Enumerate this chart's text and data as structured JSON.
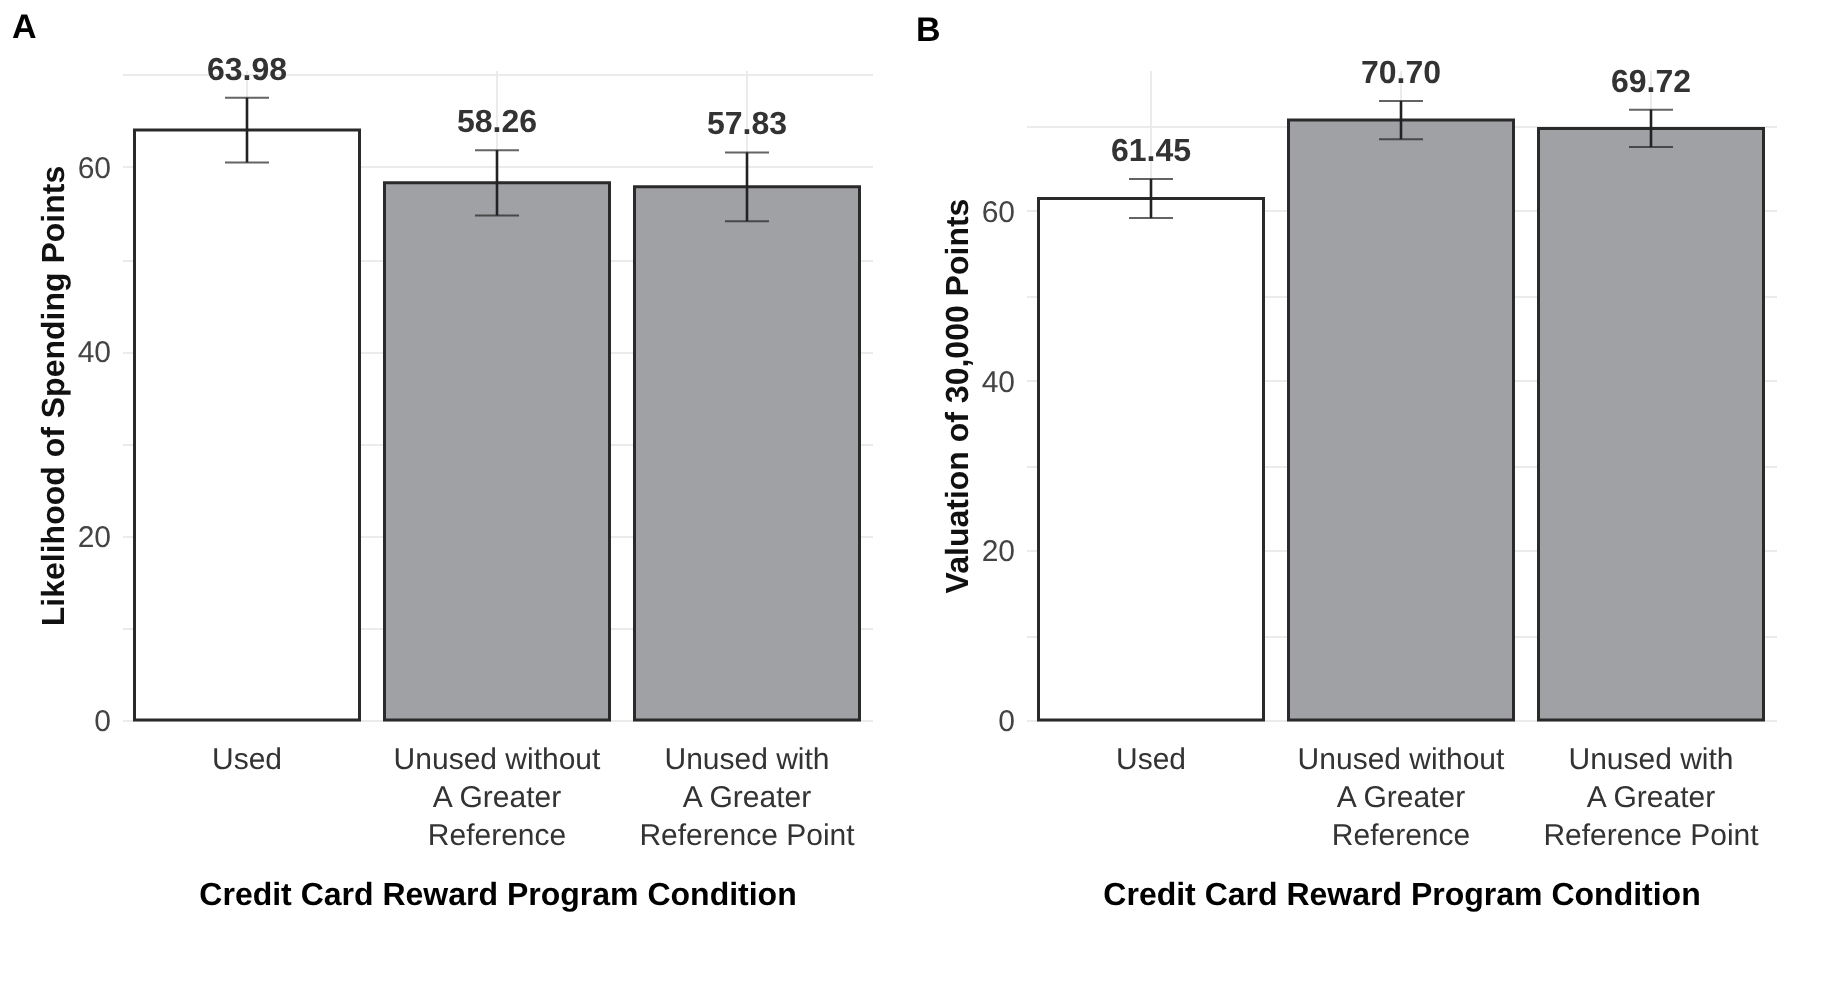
{
  "chart_data": [
    {
      "type": "bar",
      "title": "A",
      "xlabel": "Credit Card Reward Program Condition",
      "ylabel": "Likelihood of Spending Points",
      "categories": [
        "Used",
        "Unused without A Greater Reference",
        "Unused with A Greater Reference Point"
      ],
      "values": [
        63.98,
        58.26,
        57.83
      ],
      "errors": [
        3.5,
        3.54,
        3.73
      ],
      "value_labels": [
        "63.98",
        "58.26",
        "57.83"
      ],
      "colors": [
        "#ffffff",
        "#a0a1a5",
        "#a0a1a5"
      ],
      "ylim": [
        0,
        70.5
      ],
      "yticks": [
        0,
        {
          "value": 10,
          "label": null
        },
        20,
        {
          "value": 30,
          "label": null
        },
        40,
        {
          "value": 50,
          "label": null
        },
        60,
        {
          "value": 70,
          "label": null
        }
      ],
      "grid": true
    },
    {
      "type": "bar",
      "title": "B",
      "xlabel": "Credit Card Reward Program Condition",
      "ylabel": "Valuation of 30,000 Points",
      "categories": [
        "Used",
        "Unused without A Greater Reference",
        "Unused with A Greater Reference Point"
      ],
      "values": [
        61.45,
        70.7,
        69.72
      ],
      "errors": [
        2.3,
        2.25,
        2.2
      ],
      "value_labels": [
        "61.45",
        "70.70",
        "69.72"
      ],
      "colors": [
        "#ffffff",
        "#a0a1a5",
        "#a0a1a5"
      ],
      "ylim": [
        0,
        76.6
      ],
      "yticks": [
        0,
        {
          "value": 10,
          "label": null
        },
        20,
        {
          "value": 30,
          "label": null
        },
        40,
        {
          "value": 50,
          "label": null
        },
        60,
        {
          "value": 70,
          "label": null
        }
      ],
      "grid": true
    }
  ]
}
